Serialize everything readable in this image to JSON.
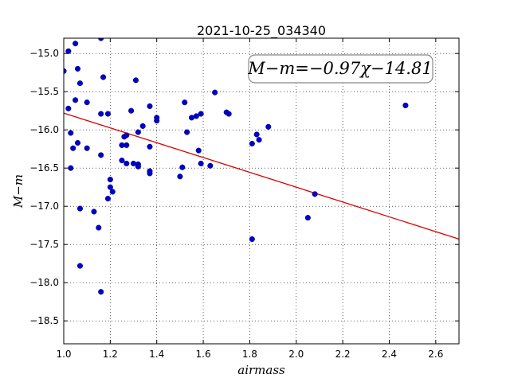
{
  "chart_data": {
    "type": "scatter",
    "title": "2021-10-25_034340",
    "xlabel": "airmass",
    "ylabel": "M−m",
    "annotation": "M−m=−0.97χ−14.81",
    "xlim": [
      1.0,
      2.7
    ],
    "ylim": [
      -18.8,
      -14.8
    ],
    "xticks": [
      1.0,
      1.2,
      1.4,
      1.6,
      1.8,
      2.0,
      2.2,
      2.4,
      2.6
    ],
    "xtick_labels": [
      "1.0",
      "1.2",
      "1.4",
      "1.6",
      "1.8",
      "2.0",
      "2.2",
      "2.4",
      "2.6"
    ],
    "yticks": [
      -15.0,
      -15.5,
      -16.0,
      -16.5,
      -17.0,
      -17.5,
      -18.0,
      -18.5
    ],
    "ytick_labels": [
      "−15.0",
      "−15.5",
      "−16.0",
      "−16.5",
      "−17.0",
      "−17.5",
      "−18.0",
      "−18.5"
    ],
    "grid": true,
    "fit_line": {
      "slope": -0.97,
      "intercept": -14.81,
      "color": "#dd0000"
    },
    "point_color": "#0000cc",
    "points": [
      [
        1.0,
        -15.23
      ],
      [
        1.02,
        -14.97
      ],
      [
        1.05,
        -14.87
      ],
      [
        1.16,
        -14.8
      ],
      [
        1.06,
        -15.2
      ],
      [
        1.07,
        -15.39
      ],
      [
        1.17,
        -15.31
      ],
      [
        1.31,
        -15.35
      ],
      [
        1.05,
        -15.61
      ],
      [
        1.02,
        -15.72
      ],
      [
        1.1,
        -15.64
      ],
      [
        1.16,
        -15.79
      ],
      [
        1.19,
        -15.79
      ],
      [
        1.29,
        -15.75
      ],
      [
        1.37,
        -15.69
      ],
      [
        1.4,
        -15.84
      ],
      [
        1.4,
        -15.88
      ],
      [
        1.52,
        -15.64
      ],
      [
        1.55,
        -15.84
      ],
      [
        1.57,
        -15.82
      ],
      [
        1.59,
        -15.79
      ],
      [
        1.65,
        -15.51
      ],
      [
        1.7,
        -15.77
      ],
      [
        1.71,
        -15.79
      ],
      [
        1.88,
        -15.96
      ],
      [
        1.83,
        -16.06
      ],
      [
        1.84,
        -16.13
      ],
      [
        1.81,
        -16.18
      ],
      [
        1.03,
        -16.04
      ],
      [
        1.06,
        -16.17
      ],
      [
        1.04,
        -16.24
      ],
      [
        1.1,
        -16.24
      ],
      [
        1.16,
        -16.33
      ],
      [
        1.25,
        -16.2
      ],
      [
        1.26,
        -16.09
      ],
      [
        1.27,
        -16.07
      ],
      [
        1.27,
        -16.2
      ],
      [
        1.32,
        -16.03
      ],
      [
        1.34,
        -15.95
      ],
      [
        1.37,
        -16.22
      ],
      [
        1.53,
        -16.03
      ],
      [
        1.58,
        -16.27
      ],
      [
        1.03,
        -16.5
      ],
      [
        1.25,
        -16.4
      ],
      [
        1.27,
        -16.44
      ],
      [
        1.3,
        -16.44
      ],
      [
        1.32,
        -16.45
      ],
      [
        1.32,
        -16.48
      ],
      [
        1.37,
        -16.57
      ],
      [
        1.37,
        -16.54
      ],
      [
        1.51,
        -16.49
      ],
      [
        1.5,
        -16.61
      ],
      [
        1.59,
        -16.44
      ],
      [
        1.63,
        -16.47
      ],
      [
        1.2,
        -16.65
      ],
      [
        1.2,
        -16.75
      ],
      [
        1.21,
        -16.81
      ],
      [
        1.19,
        -16.9
      ],
      [
        1.07,
        -17.03
      ],
      [
        1.13,
        -17.07
      ],
      [
        1.15,
        -17.28
      ],
      [
        2.08,
        -16.84
      ],
      [
        2.05,
        -17.15
      ],
      [
        1.81,
        -17.43
      ],
      [
        1.07,
        -17.78
      ],
      [
        1.16,
        -18.12
      ],
      [
        2.47,
        -15.68
      ]
    ]
  }
}
